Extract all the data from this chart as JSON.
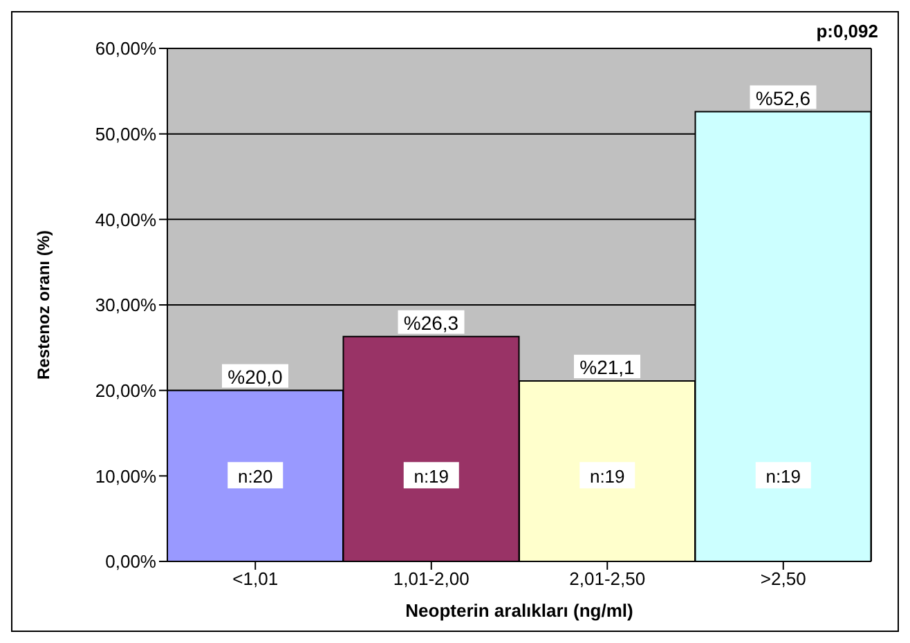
{
  "chart_data": {
    "type": "bar",
    "xlabel": "Neopterin aralıkları (ng/ml)",
    "ylabel": "Restenoz oranı (%)",
    "categories": [
      "<1,01",
      "1,01-2,00",
      "2,01-2,50",
      ">2,50"
    ],
    "values": [
      20.0,
      26.3,
      21.1,
      52.6
    ],
    "colors": [
      "#9999ff",
      "#993366",
      "#ffffcc",
      "#ccffff"
    ],
    "value_labels": [
      "%20,0",
      "%26,3",
      "%21,1",
      "%52,6"
    ],
    "ylim": [
      0,
      60
    ],
    "yticks": [
      {
        "value": 0,
        "label": "0,00%"
      },
      {
        "value": 10,
        "label": "10,00%"
      },
      {
        "value": 20,
        "label": "20,00%"
      },
      {
        "value": 30,
        "label": "30,00%"
      },
      {
        "value": 40,
        "label": "40,00%"
      },
      {
        "value": 50,
        "label": "50,00%"
      },
      {
        "value": 60,
        "label": "60,00%"
      }
    ],
    "grid": "y",
    "annotations": [
      "p:0,092",
      {
        "text": "n:20",
        "x": "<1,01",
        "y": 10
      },
      {
        "text": "n:19",
        "x": "1,01-2,00",
        "y": 10
      },
      {
        "text": "n:19",
        "x": "2,01-2,50",
        "y": 10
      },
      {
        "text": "n:19",
        "x": ">2,50",
        "y": 10
      }
    ]
  }
}
